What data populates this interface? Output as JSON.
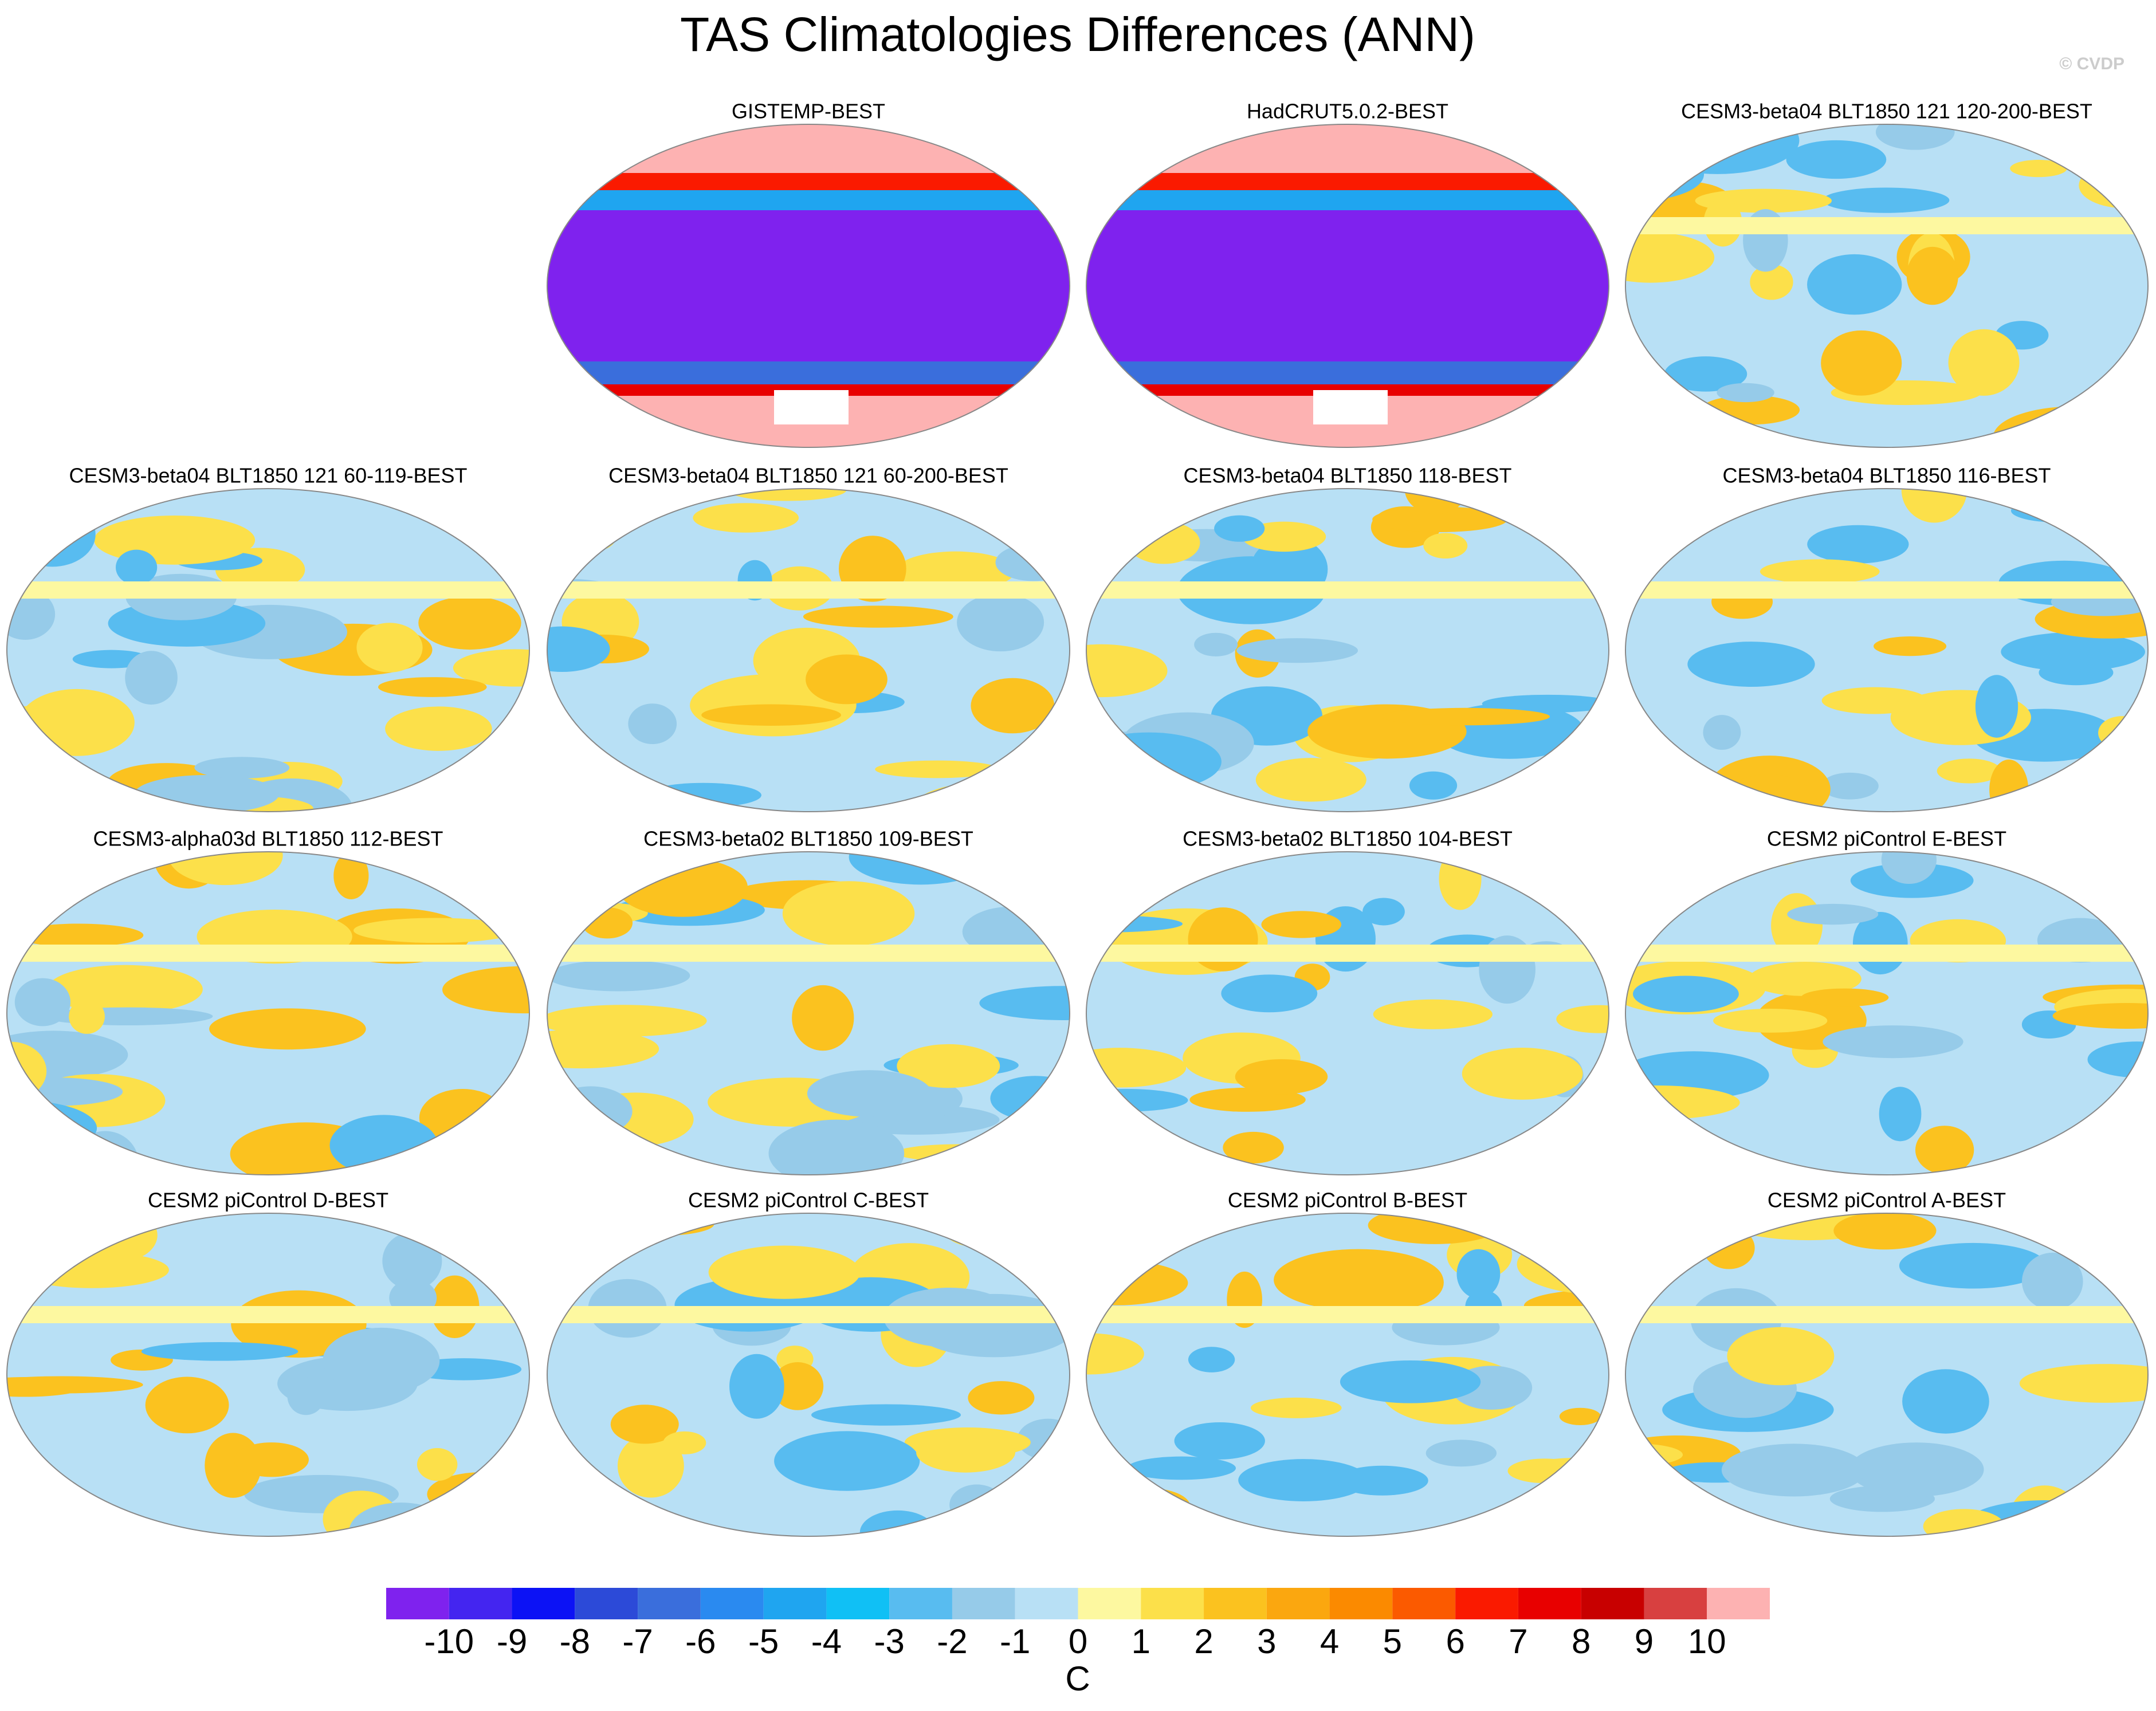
{
  "title": "TAS Climatologies Differences (ANN)",
  "watermark": "© CVDP",
  "panels": [
    "GISTEMP-BEST",
    "HadCRUT5.0.2-BEST",
    "CESM3-beta04 BLT1850 121 120-200-BEST",
    "CESM3-beta04 BLT1850 121 60-119-BEST",
    "CESM3-beta04 BLT1850 121 60-200-BEST",
    "CESM3-beta04 BLT1850 118-BEST",
    "CESM3-beta04 BLT1850 116-BEST",
    "CESM3-alpha03d BLT1850 112-BEST",
    "CESM3-beta02 BLT1850 109-BEST",
    "CESM3-beta02 BLT1850 104-BEST",
    "CESM2 piControl E-BEST",
    "CESM2 piControl D-BEST",
    "CESM2 piControl C-BEST",
    "CESM2 piControl B-BEST",
    "CESM2 piControl A-BEST"
  ],
  "colorbar": {
    "levels": [
      -10,
      -9,
      -8,
      -7,
      -6,
      -5,
      -4,
      -3,
      -2,
      -1,
      0,
      1,
      2,
      3,
      4,
      5,
      6,
      7,
      8,
      9,
      10
    ],
    "colors": [
      "#7f22ee",
      "#4425f0",
      "#0c12f5",
      "#2c4ad8",
      "#3a6edc",
      "#2a8af0",
      "#1fa5f0",
      "#10c0f5",
      "#58bcf0",
      "#96cbe9",
      "#b8e0f5",
      "#fdf8a0",
      "#fce04a",
      "#fbc21f",
      "#fba70f",
      "#fb8a00",
      "#fb5a00",
      "#fa1a00",
      "#e80000",
      "#c80000",
      "#d84040",
      "#fdb2b2"
    ],
    "unit": "C"
  }
}
